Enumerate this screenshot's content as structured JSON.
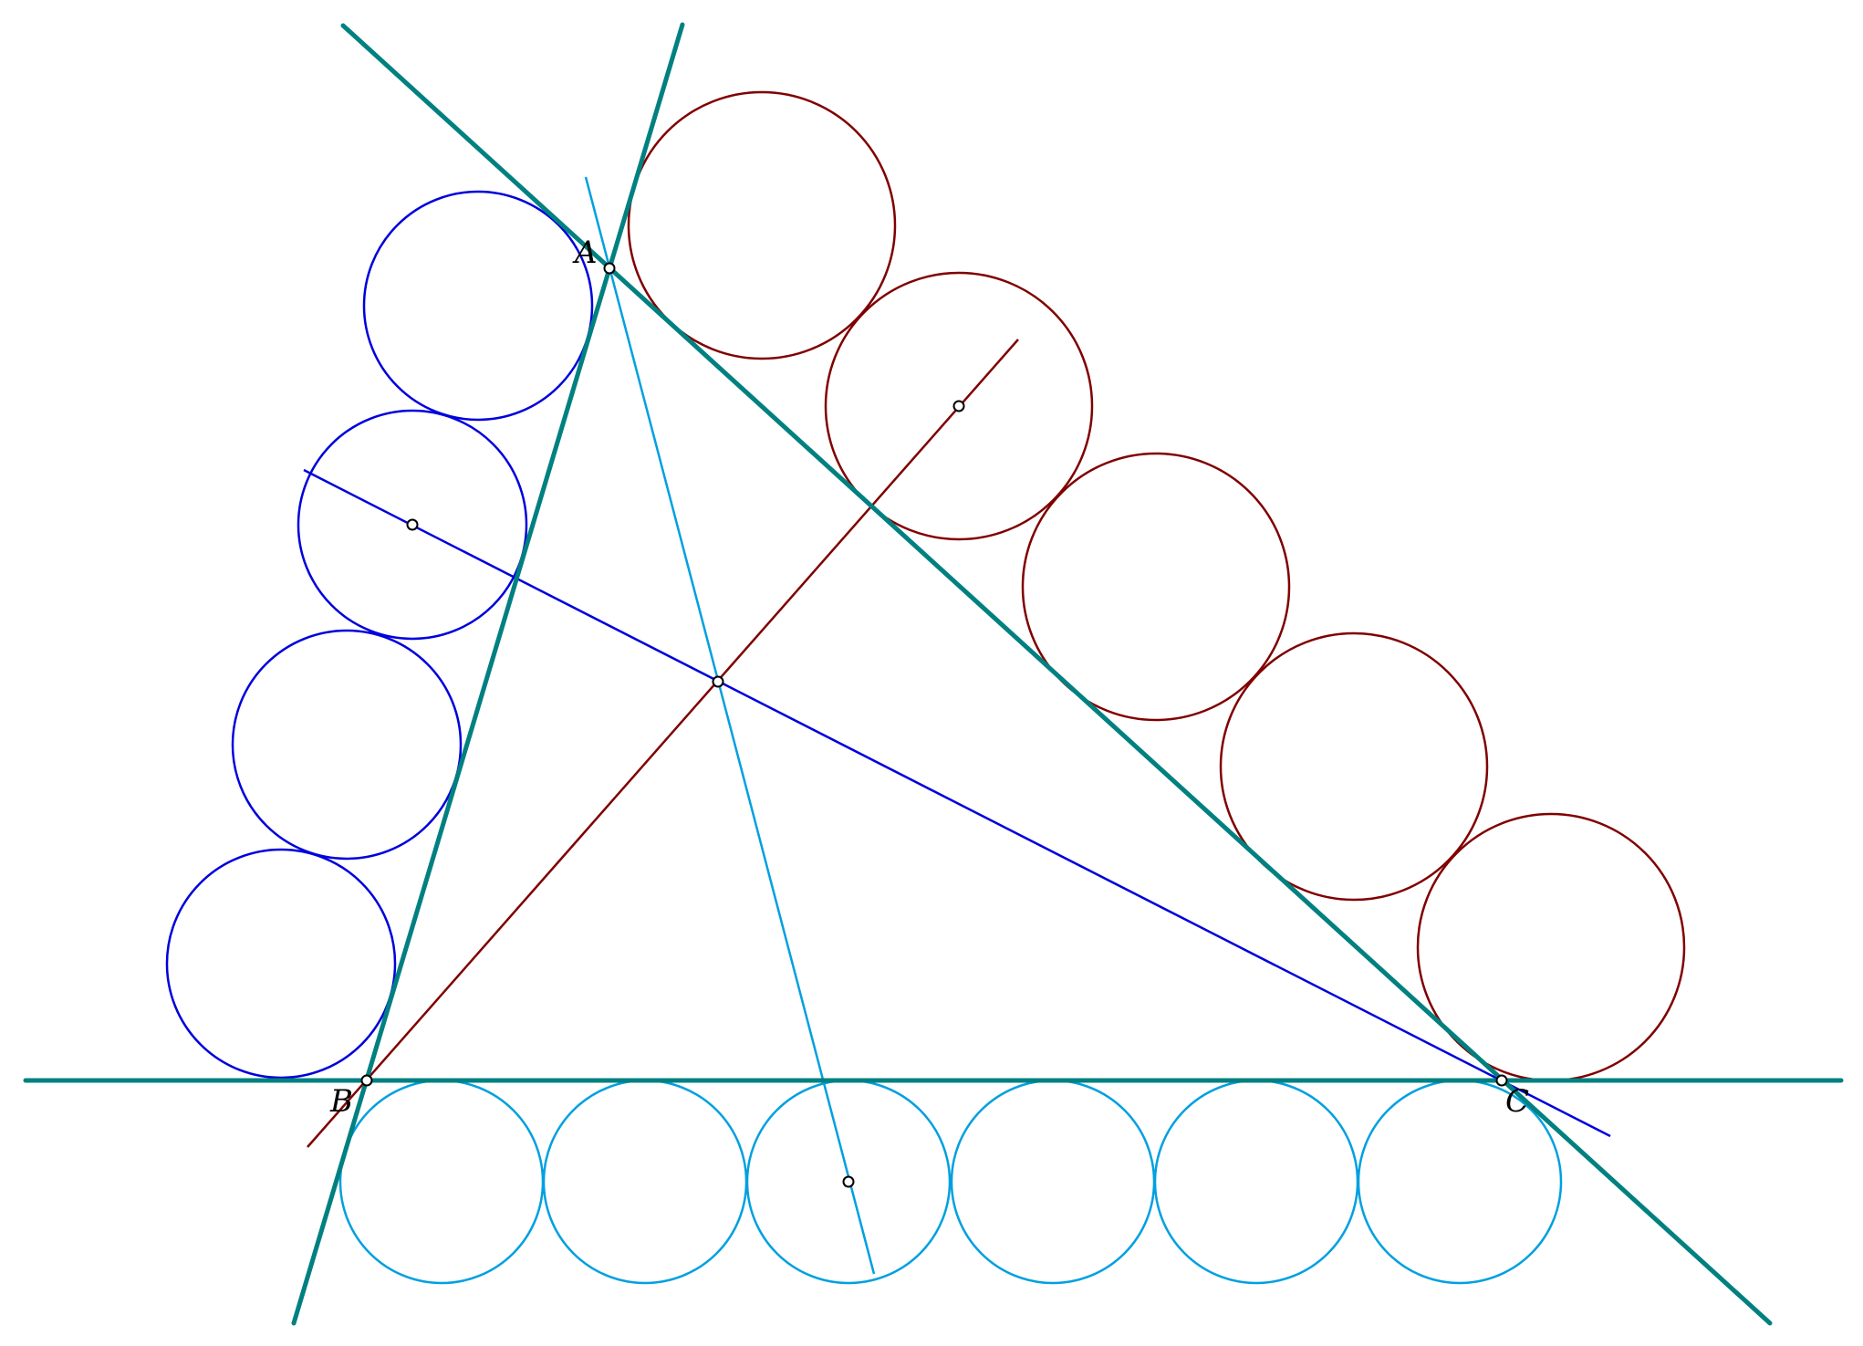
{
  "labels": {
    "A": "A",
    "B": "B",
    "C": "C"
  },
  "colors": {
    "background": "#ffffff",
    "sides": "#008080",
    "blue": "#0000dd",
    "dark_red": "#800000",
    "cyan": "#00a0e0",
    "point_fill": "#ffffff",
    "point_stroke": "#000000"
  }
}
